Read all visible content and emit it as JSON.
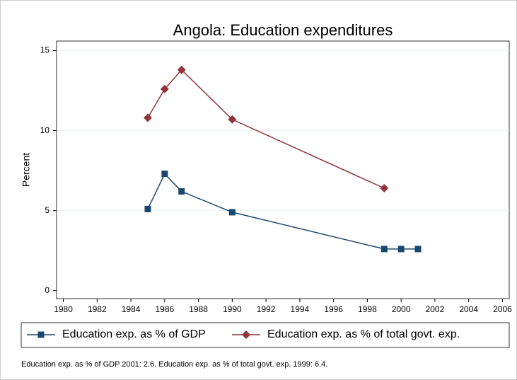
{
  "chart_data": {
    "type": "line",
    "title": "Angola: Education expenditures",
    "y_label": "Percent",
    "note": "Education exp. as % of GDP 2001: 2.6. Education exp. as % of total govt. exp. 1999: 6.4.",
    "xlim": [
      1979.6,
      2006.4
    ],
    "xticks": [
      1980,
      1982,
      1984,
      1986,
      1988,
      1990,
      1992,
      1994,
      1996,
      1998,
      2000,
      2002,
      2004,
      2006
    ],
    "ylim": [
      -0.5,
      15.6
    ],
    "yticks": [
      0,
      5,
      10,
      15
    ],
    "grid": true,
    "series": [
      {
        "name": "Education exp. as % of GDP",
        "color": "#1a476f",
        "marker": "square",
        "x": [
          1985,
          1986,
          1987,
          1990,
          1999,
          2000,
          2001
        ],
        "values": [
          5.1,
          7.3,
          6.2,
          4.9,
          2.6,
          2.6,
          2.6
        ]
      },
      {
        "name": "Education exp. as % of total govt. exp.",
        "color": "#90353b",
        "marker": "diamond",
        "x": [
          1985,
          1986,
          1987,
          1990,
          1999
        ],
        "values": [
          10.8,
          12.6,
          13.8,
          10.7,
          6.4
        ]
      }
    ]
  }
}
